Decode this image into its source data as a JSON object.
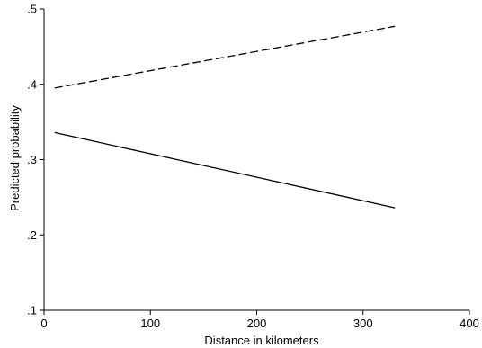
{
  "chart_data": {
    "type": "line",
    "title": "",
    "xlabel": "Distance in kilometers",
    "ylabel": "Predicted probability",
    "xlim": [
      0,
      400
    ],
    "ylim": [
      0.1,
      0.5
    ],
    "xticks": [
      0,
      100,
      200,
      300,
      400
    ],
    "xtick_labels": [
      "0",
      "100",
      "200",
      "300",
      "400"
    ],
    "yticks": [
      0.1,
      0.2,
      0.3,
      0.4,
      0.5
    ],
    "ytick_labels": [
      ".1",
      ".2",
      ".3",
      ".4",
      ".5"
    ],
    "grid": false,
    "legend": false,
    "series": [
      {
        "style": "dashed",
        "color": "#000000",
        "x": [
          10,
          330
        ],
        "y": [
          0.395,
          0.477
        ]
      },
      {
        "style": "solid",
        "color": "#000000",
        "x": [
          10,
          330
        ],
        "y": [
          0.336,
          0.236
        ]
      }
    ]
  }
}
